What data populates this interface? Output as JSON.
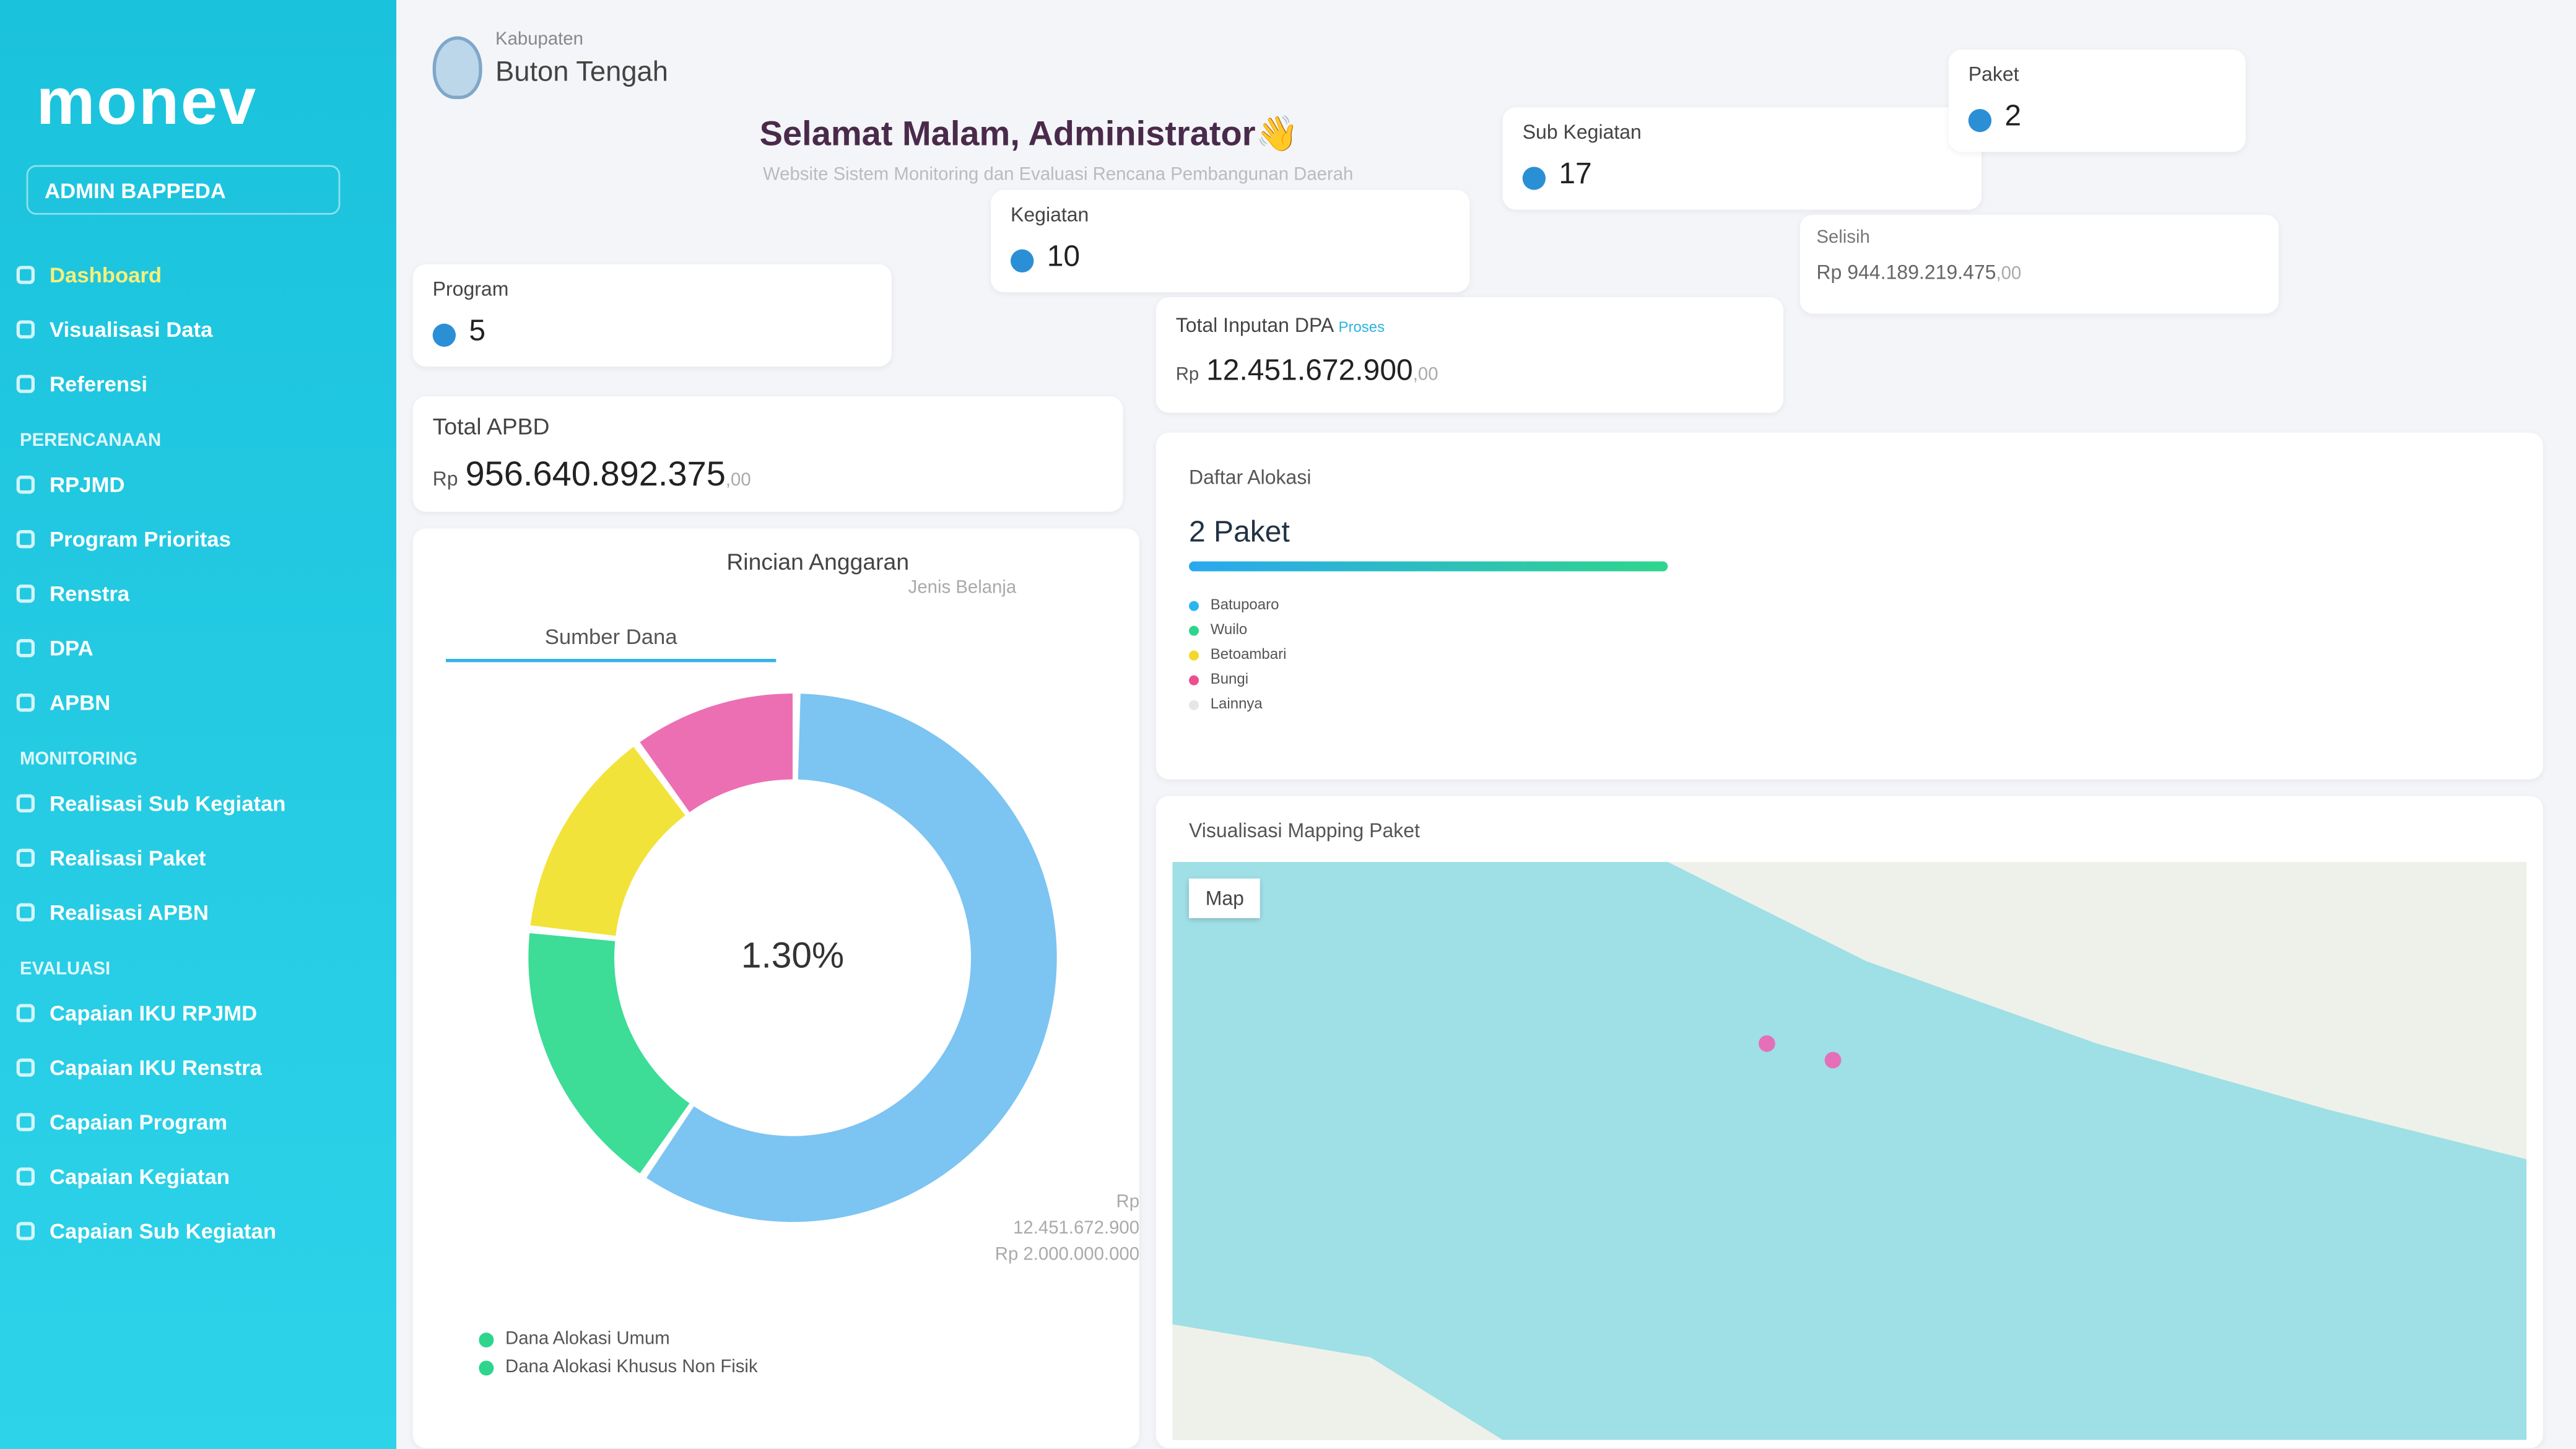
{
  "sidebar": {
    "logo": "monev",
    "user": "ADMIN BAPPEDA",
    "menu": [
      "Dashboard",
      "Visualisasi Data",
      "Referensi"
    ],
    "groups": [
      {
        "heading": "PERENCANAAN",
        "items": [
          "RPJMD",
          "Program Prioritas",
          "Renstra",
          "DPA",
          "APBN"
        ]
      },
      {
        "heading": "MONITORING",
        "items": [
          "Realisasi Sub Kegiatan",
          "Realisasi Paket",
          "Realisasi APBN"
        ]
      },
      {
        "heading": "EVALUASI",
        "items": [
          "Capaian IKU RPJMD",
          "Capaian IKU Renstra",
          "Capaian Program",
          "Capaian Kegiatan",
          "Capaian Sub Kegiatan"
        ]
      }
    ]
  },
  "header": {
    "region_label": "Kabupaten",
    "region": "Buton Tengah",
    "greeting": "Selamat Malam, Administrator👋",
    "subtitle": "Website Sistem Monitoring dan Evaluasi Rencana Pembangunan Daerah"
  },
  "stats": [
    {
      "label": "Program",
      "value": 5
    },
    {
      "label": "Kegiatan",
      "value": 10
    },
    {
      "label": "Sub Kegiatan",
      "value": 17
    },
    {
      "label": "Paket",
      "value": 2
    }
  ],
  "totals": {
    "apbd": {
      "label": "Total APBD",
      "currency": "Rp",
      "amount": "956.640.892.375",
      "decimals": ",00"
    },
    "dpa": {
      "label": "Total Inputan DPA",
      "badge": "Proses",
      "currency": "Rp",
      "amount": "12.451.672.900",
      "decimals": ",00"
    },
    "selisih": {
      "label": "Selisih",
      "currency": "Rp",
      "amount": "944.189.219.475",
      "decimals": ",00"
    }
  },
  "rincian": {
    "title": "Rincian Anggaran",
    "tabs": [
      "Sumber Dana",
      "Jenis Belanja"
    ],
    "center_label": "1.30%",
    "values": [
      60,
      17,
      13,
      10
    ],
    "colors": [
      "#7cc4f2",
      "#3ddc97",
      "#f2e33a",
      "#ec6fb4"
    ],
    "amounts": [
      "Rp 12.451.672.900",
      "Rp 2.000.000.000"
    ],
    "legend": [
      "Dana Alokasi Umum",
      "Dana Alokasi Khusus Non Fisik"
    ]
  },
  "alokasi": {
    "title": "Daftar Alokasi",
    "count": "2 Paket",
    "legend": [
      "Batupoaro",
      "Wuilo",
      "Betoambari",
      "Bungi",
      "Lainnya"
    ]
  },
  "map": {
    "title": "Visualisasi Mapping Paket",
    "control": "Map"
  }
}
